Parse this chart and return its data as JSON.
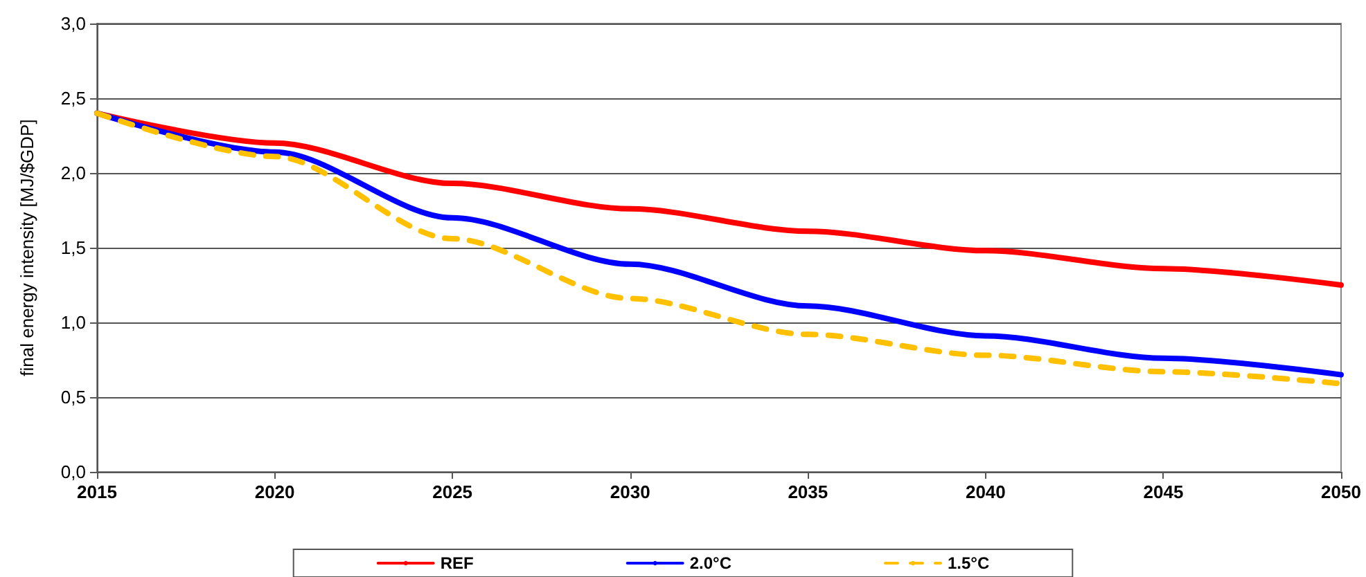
{
  "chart_data": {
    "type": "line",
    "ylabel": "final energy intensity [MJ/$GDP]",
    "x": [
      2015,
      2020,
      2025,
      2030,
      2035,
      2040,
      2045,
      2050
    ],
    "series": [
      {
        "name": "REF",
        "color": "#ff0000",
        "values": [
          2.4,
          2.2,
          1.93,
          1.76,
          1.61,
          1.48,
          1.36,
          1.25
        ]
      },
      {
        "name": "2.0°C",
        "color": "#0000ff",
        "values": [
          2.4,
          2.14,
          1.7,
          1.39,
          1.11,
          0.91,
          0.76,
          0.65
        ]
      },
      {
        "name": "1.5°C",
        "color": "#ffc000",
        "line_style": "dashed",
        "values": [
          2.4,
          2.11,
          1.56,
          1.16,
          0.92,
          0.78,
          0.67,
          0.59
        ]
      }
    ],
    "xlim": [
      2015,
      2050
    ],
    "xticks": [
      2015,
      2020,
      2025,
      2030,
      2035,
      2040,
      2045,
      2050
    ],
    "ylim": [
      0,
      3
    ],
    "yticks": [
      {
        "value": 0,
        "label": "0,0"
      },
      {
        "value": 0.5,
        "label": "0,5"
      },
      {
        "value": 1,
        "label": "1,0"
      },
      {
        "value": 1.5,
        "label": "1,5"
      },
      {
        "value": 2,
        "label": "2,0"
      },
      {
        "value": 2.5,
        "label": "2,5"
      },
      {
        "value": 3,
        "label": "3,0"
      }
    ],
    "grid": "y",
    "legend": "bottom",
    "marker": "none",
    "line_style": "solid"
  }
}
